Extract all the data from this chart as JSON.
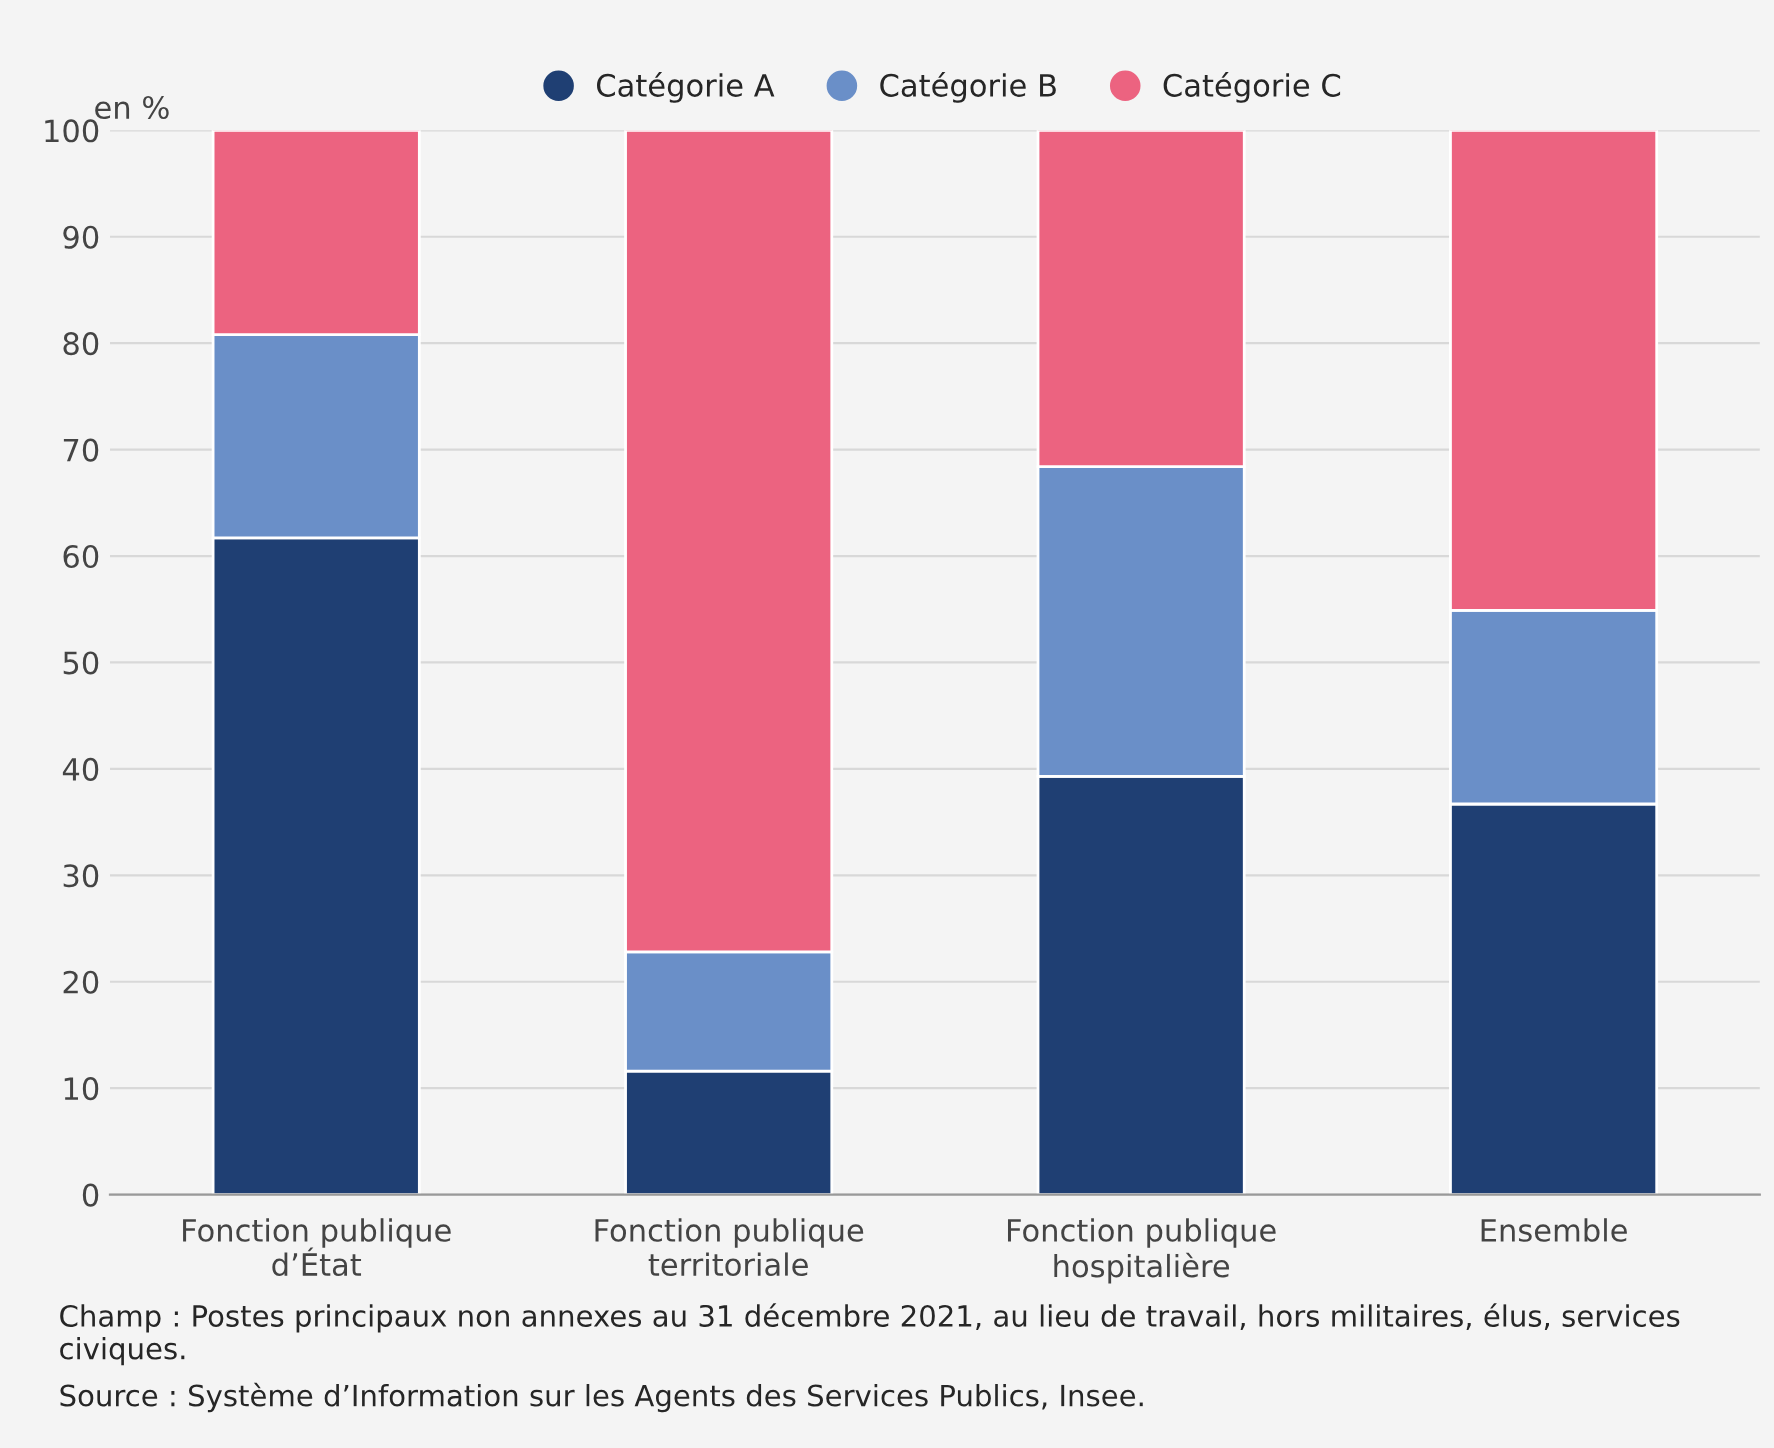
{
  "chart_data": {
    "type": "bar",
    "stacked": true,
    "ylabel": "en %",
    "categories": [
      "Fonction publique\nd’État",
      "Fonction publique\nterritoriale",
      "Fonction publique\nhospitalière",
      "Ensemble"
    ],
    "series": [
      {
        "name": "Catégorie A",
        "color": "#1f3f73",
        "values": [
          61.7,
          11.6,
          39.3,
          36.7
        ]
      },
      {
        "name": "Catégorie B",
        "color": "#6a8fc8",
        "values": [
          19.1,
          11.2,
          29.1,
          18.2
        ]
      },
      {
        "name": "Catégorie C",
        "color": "#ec6380",
        "values": [
          19.2,
          77.2,
          31.6,
          45.1
        ]
      }
    ],
    "ylim": [
      0,
      100
    ],
    "yticks": [
      0,
      10,
      20,
      30,
      40,
      50,
      60,
      70,
      80,
      90,
      100
    ],
    "grid": "y",
    "legend": "top",
    "annotations": [
      "Champ : Postes principaux non annexes au 31 décembre 2021, au lieu de travail, hors militaires, élus, services civiques.",
      "Source : Système d’Information sur les Agents des Services Publics, Insee."
    ]
  }
}
